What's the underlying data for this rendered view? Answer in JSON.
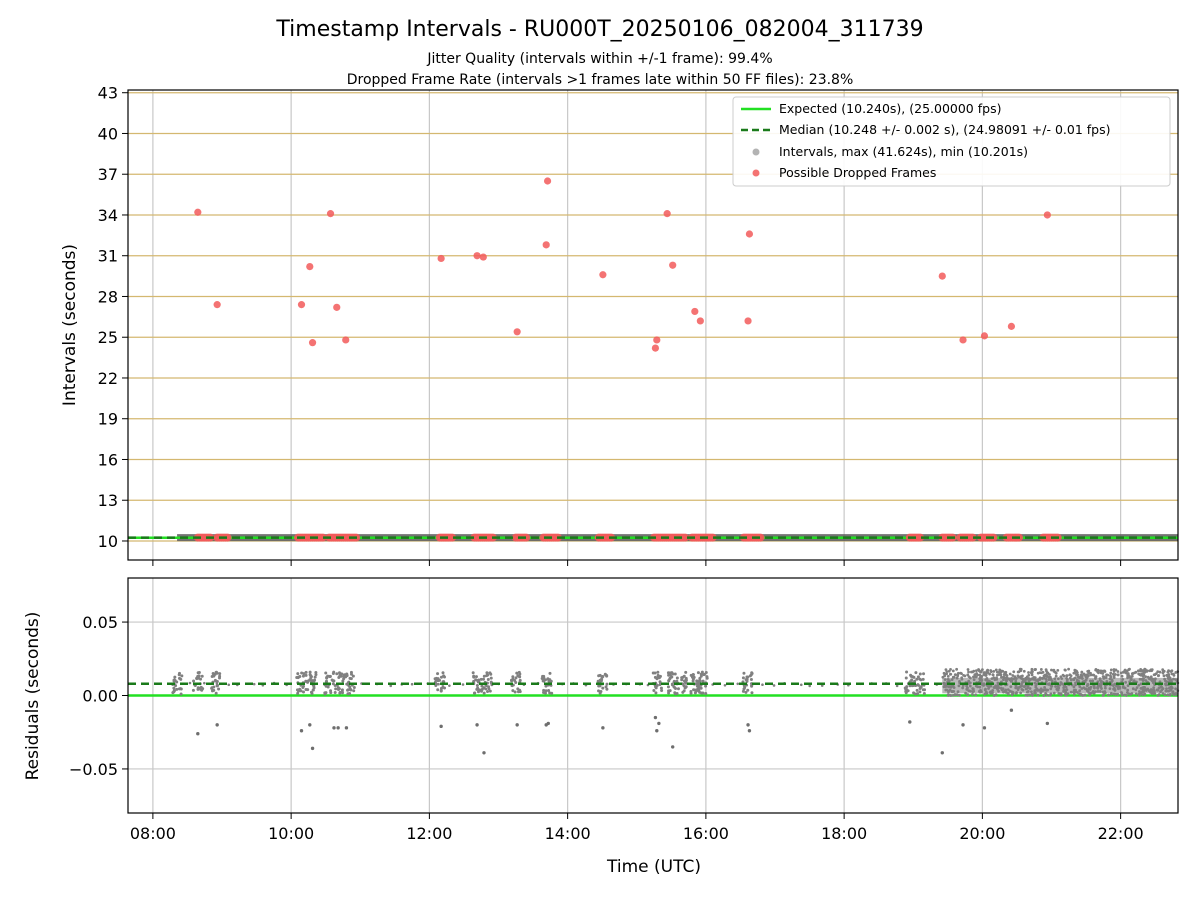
{
  "chart_data": {
    "title": "Timestamp Intervals - RU000T_20250106_082004_311739",
    "subtitle_lines": [
      "Jitter Quality (intervals within +/-1 frame): 99.4%",
      "Dropped Frame Rate (intervals >1 frames late within 50 FF files): 23.8%"
    ],
    "xlabel": "Time (UTC)",
    "x_ticks": [
      "08:00",
      "10:00",
      "12:00",
      "14:00",
      "16:00",
      "18:00",
      "20:00",
      "22:00"
    ],
    "xlim_hours": [
      7.64,
      22.83
    ],
    "colors": {
      "expected": "#22e022",
      "median": "#1a7a1a",
      "intervals": "#808080",
      "dropped": "#f25a5a",
      "hgrid_top": "#d4b870",
      "grid": "#c8c8c8"
    },
    "legend": {
      "placement": "top-right",
      "entries": [
        "Expected (10.240s), (25.00000 fps)",
        "Median (10.248 +/- 0.002 s), (24.98091 +/- 0.01 fps)",
        "Intervals, max (41.624s), min (10.201s)",
        "Possible Dropped Frames"
      ]
    },
    "top": {
      "type": "scatter",
      "ylabel": "Intervals (seconds)",
      "y_ticks": [
        "10",
        "13",
        "16",
        "19",
        "22",
        "25",
        "28",
        "31",
        "34",
        "37",
        "40",
        "43"
      ],
      "ylim": [
        8.6,
        43.2
      ],
      "expected": 10.24,
      "median": 10.248,
      "interval_band": {
        "x_start": 8.35,
        "x_end": 22.83,
        "y": 10.25
      },
      "baseline_dropped_x_ranges": [
        [
          8.65,
          8.85
        ],
        [
          8.93,
          9.08
        ],
        [
          10.1,
          10.47
        ],
        [
          10.55,
          10.95
        ],
        [
          12.15,
          12.33
        ],
        [
          12.65,
          12.93
        ],
        [
          13.25,
          13.4
        ],
        [
          13.65,
          13.88
        ],
        [
          14.45,
          14.65
        ],
        [
          15.25,
          15.7
        ],
        [
          15.8,
          16.1
        ],
        [
          16.55,
          16.8
        ],
        [
          18.95,
          19.12
        ],
        [
          19.42,
          19.58
        ],
        [
          19.68,
          19.88
        ],
        [
          19.98,
          20.18
        ],
        [
          20.35,
          20.55
        ],
        [
          20.88,
          21.1
        ]
      ],
      "dropped_frames": [
        {
          "x": 8.65,
          "y": 34.2
        },
        {
          "x": 8.93,
          "y": 27.4
        },
        {
          "x": 10.15,
          "y": 27.4
        },
        {
          "x": 10.27,
          "y": 30.2
        },
        {
          "x": 10.31,
          "y": 24.6
        },
        {
          "x": 10.57,
          "y": 34.1
        },
        {
          "x": 10.66,
          "y": 27.2
        },
        {
          "x": 10.79,
          "y": 24.8
        },
        {
          "x": 12.17,
          "y": 30.8
        },
        {
          "x": 12.69,
          "y": 31.0
        },
        {
          "x": 12.78,
          "y": 30.9
        },
        {
          "x": 13.27,
          "y": 25.4
        },
        {
          "x": 13.69,
          "y": 31.8
        },
        {
          "x": 13.71,
          "y": 36.5
        },
        {
          "x": 14.51,
          "y": 29.6
        },
        {
          "x": 15.27,
          "y": 24.2
        },
        {
          "x": 15.29,
          "y": 24.8
        },
        {
          "x": 15.44,
          "y": 34.1
        },
        {
          "x": 15.52,
          "y": 30.3
        },
        {
          "x": 15.84,
          "y": 26.9
        },
        {
          "x": 15.92,
          "y": 26.2
        },
        {
          "x": 16.61,
          "y": 26.2
        },
        {
          "x": 16.63,
          "y": 32.6
        },
        {
          "x": 19.42,
          "y": 29.5
        },
        {
          "x": 19.72,
          "y": 24.8
        },
        {
          "x": 20.03,
          "y": 25.1
        },
        {
          "x": 20.42,
          "y": 25.8
        },
        {
          "x": 20.94,
          "y": 34.0
        }
      ]
    },
    "bottom": {
      "type": "scatter",
      "ylabel": "Residuals (seconds)",
      "y_ticks": [
        0.05,
        0.0,
        -0.05
      ],
      "y_tick_labels": [
        "0.05",
        "0.00",
        "−0.05"
      ],
      "ylim": [
        -0.08,
        0.08
      ],
      "expected": 0.0,
      "median": 0.008,
      "dense_band": {
        "x_start": 19.42,
        "x_end": 22.83,
        "y_low": 0.0,
        "y_high": 0.018
      },
      "cluster_x": [
        8.35,
        8.65,
        8.9,
        10.15,
        10.3,
        10.55,
        10.7,
        10.85,
        12.15,
        12.7,
        12.85,
        13.25,
        13.7,
        14.5,
        15.3,
        15.5,
        15.65,
        15.85,
        15.95,
        16.6,
        18.95,
        19.1
      ],
      "outliers": [
        {
          "x": 8.65,
          "y": -0.026
        },
        {
          "x": 8.93,
          "y": -0.02
        },
        {
          "x": 10.15,
          "y": -0.024
        },
        {
          "x": 10.27,
          "y": -0.02
        },
        {
          "x": 10.31,
          "y": -0.036
        },
        {
          "x": 10.62,
          "y": -0.022
        },
        {
          "x": 10.68,
          "y": -0.022
        },
        {
          "x": 10.8,
          "y": -0.022
        },
        {
          "x": 12.17,
          "y": -0.021
        },
        {
          "x": 12.69,
          "y": -0.02
        },
        {
          "x": 12.79,
          "y": -0.039
        },
        {
          "x": 13.27,
          "y": -0.02
        },
        {
          "x": 13.69,
          "y": -0.02
        },
        {
          "x": 13.72,
          "y": -0.019
        },
        {
          "x": 14.51,
          "y": -0.022
        },
        {
          "x": 15.27,
          "y": -0.015
        },
        {
          "x": 15.29,
          "y": -0.024
        },
        {
          "x": 15.32,
          "y": -0.019
        },
        {
          "x": 15.52,
          "y": -0.035
        },
        {
          "x": 16.61,
          "y": -0.02
        },
        {
          "x": 16.63,
          "y": -0.024
        },
        {
          "x": 18.95,
          "y": -0.018
        },
        {
          "x": 19.42,
          "y": -0.039
        },
        {
          "x": 19.72,
          "y": -0.02
        },
        {
          "x": 20.03,
          "y": -0.022
        },
        {
          "x": 20.42,
          "y": -0.01
        },
        {
          "x": 20.94,
          "y": -0.019
        }
      ]
    }
  }
}
